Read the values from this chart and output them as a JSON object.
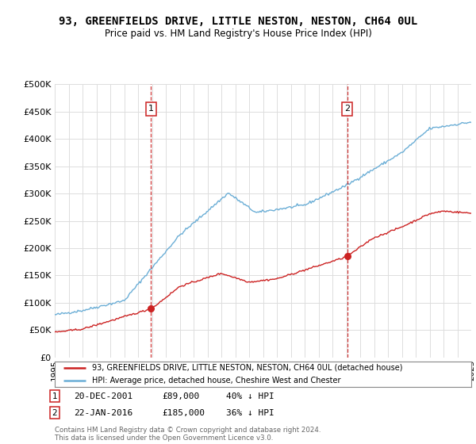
{
  "title": "93, GREENFIELDS DRIVE, LITTLE NESTON, NESTON, CH64 0UL",
  "subtitle": "Price paid vs. HM Land Registry's House Price Index (HPI)",
  "background_color": "#ffffff",
  "grid_color": "#dddddd",
  "hpi_color": "#6baed6",
  "price_color": "#cc2222",
  "marker1_year": 2001.96,
  "marker2_year": 2016.06,
  "marker1_price": 89000,
  "marker2_price": 185000,
  "marker1_label": "1",
  "marker2_label": "2",
  "legend_line1": "93, GREENFIELDS DRIVE, LITTLE NESTON, NESTON, CH64 0UL (detached house)",
  "legend_line2": "HPI: Average price, detached house, Cheshire West and Chester",
  "footer": "Contains HM Land Registry data © Crown copyright and database right 2024.\nThis data is licensed under the Open Government Licence v3.0.",
  "ylim": [
    0,
    500000
  ],
  "yticks": [
    0,
    50000,
    100000,
    150000,
    200000,
    250000,
    300000,
    350000,
    400000,
    450000,
    500000
  ],
  "ytick_labels": [
    "£0",
    "£50K",
    "£100K",
    "£150K",
    "£200K",
    "£250K",
    "£300K",
    "£350K",
    "£400K",
    "£450K",
    "£500K"
  ],
  "xstart": 1995.0,
  "xend": 2025.0,
  "sale1_text_date": "20-DEC-2001",
  "sale1_text_price": "£89,000",
  "sale1_text_hpi": "40% ↓ HPI",
  "sale2_text_date": "22-JAN-2016",
  "sale2_text_price": "£185,000",
  "sale2_text_hpi": "36% ↓ HPI"
}
